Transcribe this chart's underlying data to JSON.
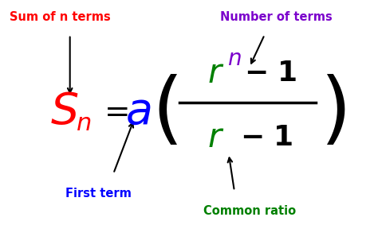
{
  "bg_color": "#ffffff",
  "labels": {
    "sum_of_n_terms": "Sum of n terms",
    "number_of_terms": "Number of terms",
    "first_term": "First term",
    "common_ratio": "Common ratio"
  },
  "label_colors": {
    "sum_of_n_terms": "#ff0000",
    "number_of_terms": "#7b00cc",
    "first_term": "#0000ff",
    "common_ratio": "#008000"
  },
  "formula_colors": {
    "S_n": "#ff0000",
    "a": "#0000ff",
    "r": "#008000",
    "n": "#7b00cc",
    "black": "#000000"
  }
}
